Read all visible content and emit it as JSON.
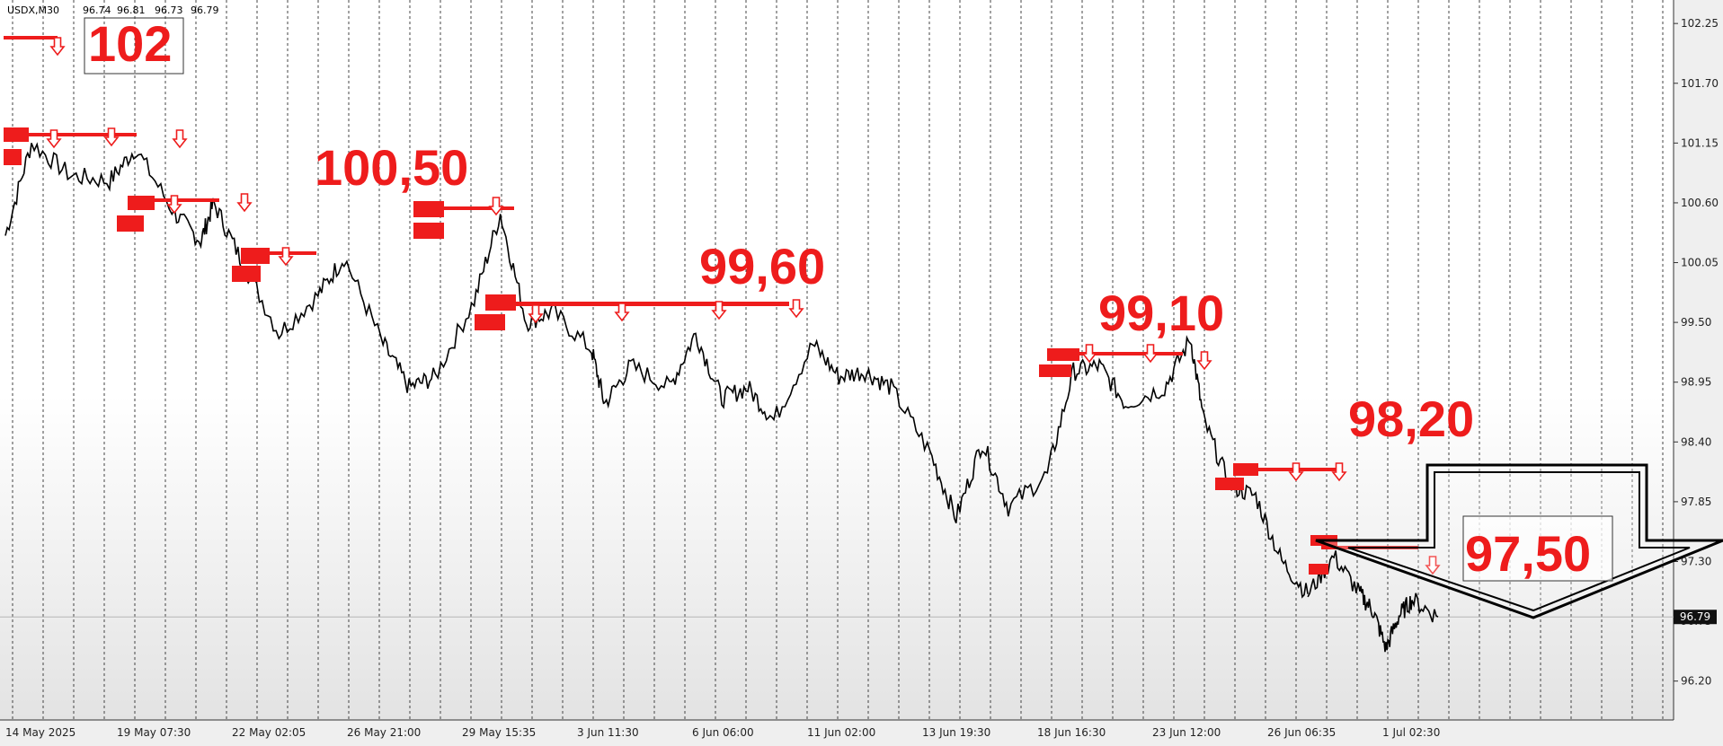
{
  "chart_data": {
    "type": "line",
    "symbol": "USDX,M30",
    "ohlc": [
      "96.74",
      "96.81",
      "96.73",
      "96.79"
    ],
    "ylim": [
      95.9,
      102.4
    ],
    "yticks": [
      "102.25",
      "101.70",
      "101.15",
      "100.60",
      "100.05",
      "99.50",
      "98.95",
      "98.40",
      "97.85",
      "97.30",
      "96.75",
      "96.20"
    ],
    "current_price": "96.79",
    "x_labels": [
      "14 May 2025",
      "19 May 07:30",
      "22 May 02:05",
      "26 May 21:00",
      "29 May 15:35",
      "3 Jun 11:30",
      "6 Jun 06:00",
      "11 Jun 02:00",
      "13 Jun 19:30",
      "18 Jun 16:30",
      "23 Jun 12:00",
      "26 Jun 06:35",
      "1 Jul 02:30"
    ],
    "series": [
      {
        "x": [
          0,
          2,
          5,
          8,
          10,
          13,
          15,
          16,
          18,
          21,
          24,
          26,
          29,
          31,
          33,
          36,
          38,
          40,
          42,
          45,
          46,
          48,
          51,
          53,
          55,
          57,
          59,
          62,
          64,
          66,
          68,
          71,
          73,
          75,
          77,
          80,
          82,
          84,
          86,
          89,
          91,
          92,
          94,
          96,
          98,
          100
        ],
        "values": [
          100.3,
          101.15,
          100.85,
          100.8,
          101.1,
          100.5,
          100.25,
          100.6,
          100.1,
          99.4,
          99.75,
          100.1,
          99.3,
          98.9,
          99.0,
          99.7,
          100.5,
          99.5,
          99.6,
          99.25,
          98.75,
          99.1,
          98.9,
          99.4,
          98.8,
          98.9,
          98.6,
          99.3,
          99.0,
          99.05,
          98.9,
          98.3,
          97.7,
          98.4,
          97.8,
          98.1,
          99.05,
          99.1,
          98.75,
          98.9,
          99.35,
          98.6,
          98.0,
          97.9,
          97.3,
          97.0
        ]
      },
      {
        "x": [
          100,
          102,
          104,
          105,
          106,
          107,
          108,
          110
        ],
        "values": [
          97.0,
          97.35,
          97.0,
          96.85,
          96.5,
          96.8,
          96.95,
          96.79
        ]
      }
    ],
    "levels": [
      "102",
      "100,50",
      "99,60",
      "99,10",
      "98,20",
      "97,50"
    ]
  }
}
